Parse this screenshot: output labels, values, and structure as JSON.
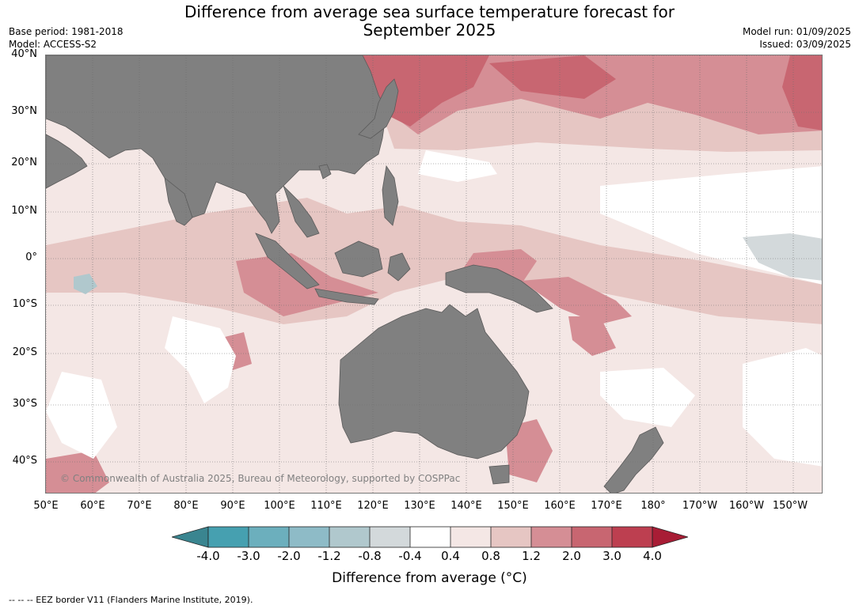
{
  "title": {
    "line1": "Difference from average sea surface temperature forecast for",
    "line2": "September 2025"
  },
  "meta_left": {
    "base_period": "Base period: 1981-2018",
    "model": "Model: ACCESS-S2"
  },
  "meta_right": {
    "model_run": "Model run: 01/09/2025",
    "issued": "Issued: 03/09/2025"
  },
  "map": {
    "lat_labels": [
      "40°N",
      "30°N",
      "20°N",
      "10°N",
      "0°",
      "10°S",
      "20°S",
      "30°S",
      "40°S"
    ],
    "lon_labels": [
      "50°E",
      "60°E",
      "70°E",
      "80°E",
      "90°E",
      "100°E",
      "110°E",
      "120°E",
      "130°E",
      "140°E",
      "150°E",
      "160°E",
      "170°E",
      "180°",
      "170°W",
      "160°W",
      "150°W"
    ],
    "land_color": "#808080",
    "copyright": "© Commonwealth of Australia 2025, Bureau of Meteorology, supported by COSPPac"
  },
  "colorbar": {
    "title": "Difference from average (°C)",
    "ticks": [
      "-4.0",
      "-3.0",
      "-2.0",
      "-1.2",
      "-0.8",
      "-0.4",
      "0.4",
      "0.8",
      "1.2",
      "2.0",
      "3.0",
      "4.0"
    ],
    "colors": [
      "#46a0b0",
      "#6cafbd",
      "#8ebbc7",
      "#b0c8cd",
      "#d3d9db",
      "#ffffff",
      "#f4e7e5",
      "#e6c6c3",
      "#d58e95",
      "#c86671",
      "#bd3f50"
    ],
    "low_extend_color": "#3a8590",
    "high_extend_color": "#a81d35"
  },
  "footer": "--  --  -- EEZ border V11 (Flanders Marine Institute, 2019)."
}
